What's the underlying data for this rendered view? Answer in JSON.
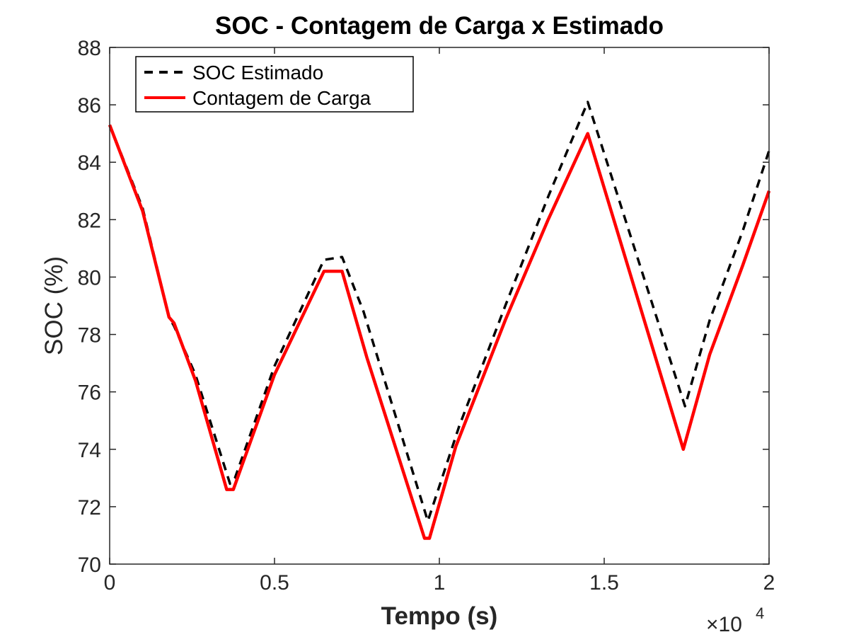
{
  "chart_data": {
    "type": "line",
    "title": "SOC - Contagem de Carga x Estimado",
    "xlabel": "Tempo (s)",
    "ylabel": "SOC (%)",
    "xlim": [
      0,
      20000
    ],
    "ylim": [
      70,
      88
    ],
    "x_ticks": [
      0,
      5000,
      10000,
      15000,
      20000
    ],
    "x_tick_labels": [
      "0",
      "0.5",
      "1",
      "1.5",
      "2"
    ],
    "x_exponent_label": "×10",
    "x_exponent_power": "4",
    "y_ticks": [
      70,
      72,
      74,
      76,
      78,
      80,
      82,
      84,
      86,
      88
    ],
    "y_tick_labels": [
      "70",
      "72",
      "74",
      "76",
      "78",
      "80",
      "82",
      "84",
      "86",
      "88"
    ],
    "grid": false,
    "legend_position": "top-left",
    "series": [
      {
        "name": "SOC Estimado",
        "color": "#000000",
        "style": "dashed",
        "x": [
          0,
          1000,
          1800,
          1950,
          2600,
          3650,
          3800,
          5000,
          6500,
          7050,
          7700,
          9650,
          10600,
          12000,
          13300,
          14500,
          17450,
          18200,
          19200,
          20000
        ],
        "y": [
          85.3,
          82.4,
          78.6,
          78.3,
          76.6,
          72.8,
          73.0,
          76.9,
          80.6,
          80.7,
          78.8,
          71.5,
          74.8,
          79.0,
          82.8,
          86.1,
          75.5,
          78.5,
          81.6,
          84.4
        ]
      },
      {
        "name": "Contagem de Carga",
        "color": "#ff0000",
        "style": "solid",
        "x": [
          0,
          1000,
          1800,
          1950,
          2600,
          3550,
          3750,
          5000,
          6500,
          7050,
          7800,
          9550,
          9700,
          10500,
          12000,
          13300,
          14500,
          17400,
          18200,
          19200,
          20000
        ],
        "y": [
          85.3,
          82.3,
          78.6,
          78.4,
          76.4,
          72.6,
          72.6,
          76.6,
          80.2,
          80.2,
          77.2,
          70.9,
          70.9,
          74.1,
          78.5,
          82.0,
          85.0,
          74.0,
          77.3,
          80.4,
          83.0
        ]
      }
    ]
  }
}
